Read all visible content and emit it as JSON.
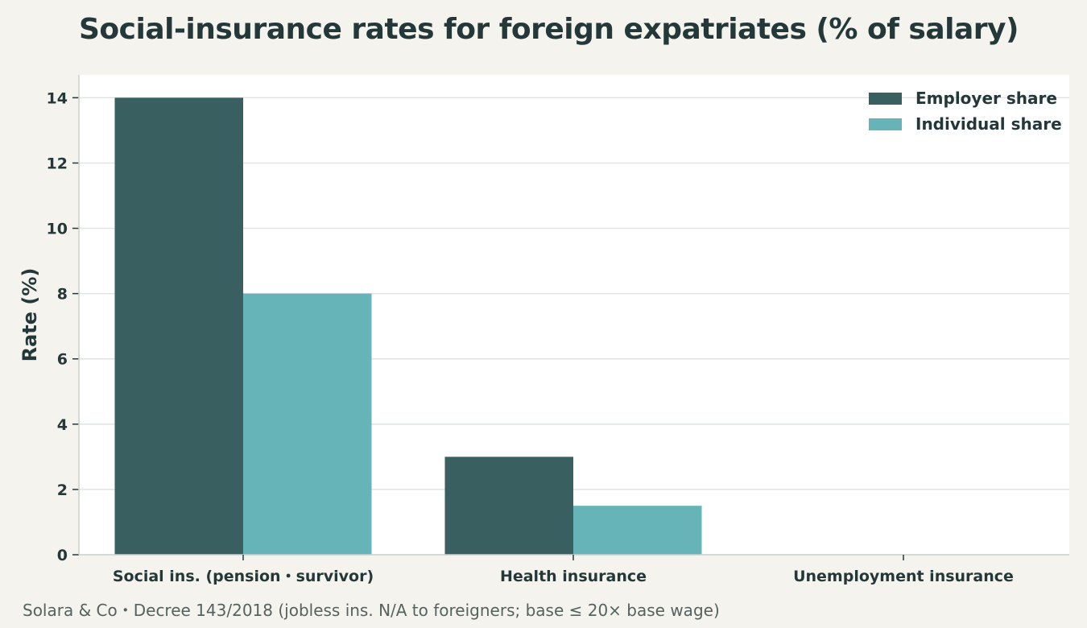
{
  "chart_data": {
    "type": "bar",
    "title": "Social-insurance rates for foreign expatriates (% of salary)",
    "xlabel": "",
    "ylabel": "Rate (%)",
    "categories": [
      "Social ins. (pension・survivor)",
      "Health insurance",
      "Unemployment insurance"
    ],
    "series": [
      {
        "name": "Employer share",
        "color": "#395f61",
        "values": [
          14,
          3,
          0
        ]
      },
      {
        "name": "Individual share",
        "color": "#67b4b8",
        "values": [
          8,
          1.5,
          0
        ]
      }
    ],
    "ylim": [
      0,
      14.7
    ],
    "yticks": [
      0,
      2,
      4,
      6,
      8,
      10,
      12,
      14
    ],
    "grid": true,
    "legend_position": "top-right",
    "source": "Solara & Co・Decree 143/2018 (jobless ins. N/A to foreigners; base ≤ 20× base wage)"
  },
  "colors": {
    "background": "#f4f3ee",
    "plot_background": "#ffffff",
    "gridline": "#dfe3e2",
    "text": "#24383a"
  }
}
